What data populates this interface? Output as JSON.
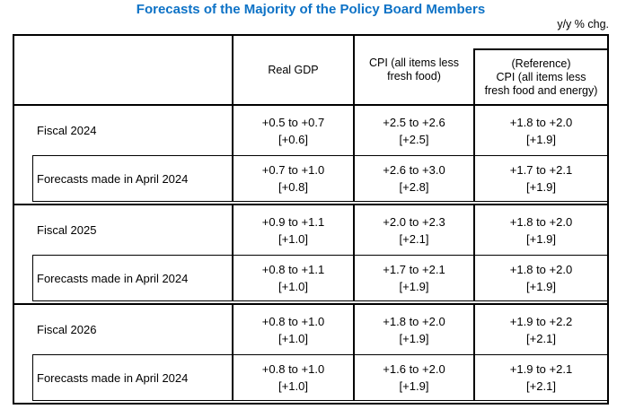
{
  "title": "Forecasts of the Majority of the Policy Board Members",
  "unit_note": "y/y % chg.",
  "colors": {
    "title_blue": "#0d72c6",
    "border": "#000000",
    "text": "#000000",
    "background": "#ffffff"
  },
  "table": {
    "header": {
      "col1": "",
      "real_gdp": "Real GDP",
      "cpi_line1": "CPI (all items less",
      "cpi_line2": "fresh food)",
      "ref_line1": "(Reference)",
      "ref_line2": "CPI (all items less",
      "ref_line3": "fresh food and energy)"
    },
    "groups": [
      {
        "label": "Fiscal 2024",
        "cells": [
          {
            "range": "+0.5 to +0.7",
            "median": "[+0.6]"
          },
          {
            "range": "+2.5 to +2.6",
            "median": "[+2.5]"
          },
          {
            "range": "+1.8 to +2.0",
            "median": "[+1.9]"
          }
        ],
        "sub_label": "Forecasts made in April 2024",
        "sub_cells": [
          {
            "range": "+0.7 to +1.0",
            "median": "[+0.8]"
          },
          {
            "range": "+2.6 to +3.0",
            "median": "[+2.8]"
          },
          {
            "range": "+1.7 to +2.1",
            "median": "[+1.9]"
          }
        ]
      },
      {
        "label": "Fiscal 2025",
        "cells": [
          {
            "range": "+0.9 to +1.1",
            "median": "[+1.0]"
          },
          {
            "range": "+2.0 to +2.3",
            "median": "[+2.1]"
          },
          {
            "range": "+1.8 to +2.0",
            "median": "[+1.9]"
          }
        ],
        "sub_label": "Forecasts made in April 2024",
        "sub_cells": [
          {
            "range": "+0.8 to +1.1",
            "median": "[+1.0]"
          },
          {
            "range": "+1.7 to +2.1",
            "median": "[+1.9]"
          },
          {
            "range": "+1.8 to +2.0",
            "median": "[+1.9]"
          }
        ]
      },
      {
        "label": "Fiscal 2026",
        "cells": [
          {
            "range": "+0.8 to +1.0",
            "median": "[+1.0]"
          },
          {
            "range": "+1.8 to +2.0",
            "median": "[+1.9]"
          },
          {
            "range": "+1.9 to +2.2",
            "median": "[+2.1]"
          }
        ],
        "sub_label": "Forecasts made in April 2024",
        "sub_cells": [
          {
            "range": "+0.8 to +1.0",
            "median": "[+1.0]"
          },
          {
            "range": "+1.6 to +2.0",
            "median": "[+1.9]"
          },
          {
            "range": "+1.9 to +2.1",
            "median": "[+2.1]"
          }
        ]
      }
    ]
  }
}
